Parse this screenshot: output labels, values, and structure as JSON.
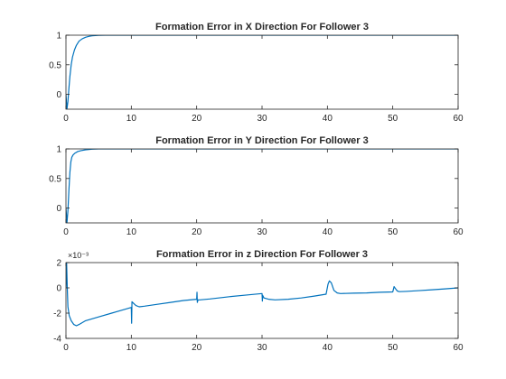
{
  "chart_data": [
    {
      "type": "line",
      "title": "Formation Error in X Direction For Follower 3",
      "xlabel": "",
      "ylabel": "",
      "xlim": [
        0,
        60
      ],
      "ylim": [
        -0.25,
        1
      ],
      "xticks": [
        0,
        10,
        20,
        30,
        40,
        50,
        60
      ],
      "yticks": [
        0,
        0.5,
        1
      ],
      "ytick_labels": [
        "0",
        "0.5",
        "1"
      ],
      "exponent_label": "",
      "grid": false,
      "line_color": "#0072BD",
      "series": [
        {
          "x": [
            0,
            0.15,
            0.3,
            0.45,
            0.6,
            0.8,
            1.0,
            1.3,
            1.6,
            2.0,
            2.5,
            3.0,
            3.5,
            4.0,
            5.0,
            6.0,
            8.0,
            10,
            20,
            30,
            40,
            50,
            60
          ],
          "y": [
            0,
            -0.25,
            -0.12,
            0.1,
            0.3,
            0.5,
            0.63,
            0.75,
            0.83,
            0.9,
            0.94,
            0.965,
            0.98,
            0.99,
            0.997,
            1.0,
            1.0,
            1.0,
            1.0,
            1.0,
            1.0,
            1.0,
            1.0
          ]
        }
      ]
    },
    {
      "type": "line",
      "title": "Formation Error in Y Direction For Follower 3",
      "xlabel": "",
      "ylabel": "",
      "xlim": [
        0,
        60
      ],
      "ylim": [
        -0.25,
        1
      ],
      "xticks": [
        0,
        10,
        20,
        30,
        40,
        50,
        60
      ],
      "yticks": [
        0,
        0.5,
        1
      ],
      "ytick_labels": [
        "0",
        "0.5",
        "1"
      ],
      "exponent_label": "",
      "grid": false,
      "line_color": "#0072BD",
      "series": [
        {
          "x": [
            0,
            0.15,
            0.3,
            0.45,
            0.6,
            0.75,
            0.9,
            1.1,
            1.4,
            1.8,
            2.3,
            3.0,
            4.0,
            5.0,
            6.0,
            10,
            20,
            30,
            40,
            50,
            60
          ],
          "y": [
            0,
            -0.25,
            -0.05,
            0.3,
            0.6,
            0.78,
            0.86,
            0.9,
            0.93,
            0.955,
            0.97,
            0.985,
            0.995,
            1.0,
            1.0,
            1.0,
            1.0,
            1.0,
            1.0,
            1.0,
            1.0
          ]
        }
      ]
    },
    {
      "type": "line",
      "title": "Formation Error in z Direction For Follower 3",
      "xlabel": "",
      "ylabel": "",
      "xlim": [
        0,
        60
      ],
      "ylim": [
        -4,
        2
      ],
      "xticks": [
        0,
        10,
        20,
        30,
        40,
        50,
        60
      ],
      "yticks": [
        -4,
        -2,
        0,
        2
      ],
      "ytick_labels": [
        "-4",
        "-2",
        "0",
        "2"
      ],
      "exponent_label": "×10⁻³",
      "grid": false,
      "line_color": "#0072BD",
      "series": [
        {
          "x": [
            0,
            0.1,
            0.2,
            0.3,
            0.5,
            0.8,
            1.2,
            1.6,
            2.0,
            3.0,
            5.0,
            7.0,
            9.0,
            10.0,
            10.05,
            10.1,
            10.3,
            10.7,
            11.2,
            12,
            14,
            16,
            18,
            20.0,
            20.05,
            20.1,
            20.2,
            20.5,
            22,
            25,
            28,
            30.0,
            30.05,
            30.1,
            30.3,
            31,
            32,
            34,
            36,
            38,
            39.8,
            40.1,
            40.3,
            40.6,
            41.0,
            41.5,
            42,
            44,
            46,
            48,
            50.0,
            50.2,
            50.4,
            50.7,
            51,
            52,
            54,
            56,
            58,
            60
          ],
          "y": [
            0,
            2,
            0,
            -1.5,
            -2.2,
            -2.6,
            -2.9,
            -3.0,
            -2.9,
            -2.6,
            -2.3,
            -2.0,
            -1.7,
            -1.55,
            -2.8,
            -1.1,
            -1.2,
            -1.4,
            -1.5,
            -1.45,
            -1.3,
            -1.15,
            -1.0,
            -0.9,
            -0.35,
            -1.15,
            -0.95,
            -0.95,
            -0.88,
            -0.7,
            -0.55,
            -0.45,
            -1.05,
            -0.6,
            -0.8,
            -0.9,
            -0.95,
            -0.9,
            -0.8,
            -0.65,
            -0.5,
            0.3,
            0.55,
            0.4,
            -0.2,
            -0.4,
            -0.45,
            -0.42,
            -0.4,
            -0.35,
            -0.32,
            0.1,
            -0.05,
            -0.25,
            -0.3,
            -0.28,
            -0.22,
            -0.15,
            -0.08,
            0
          ]
        }
      ]
    }
  ]
}
